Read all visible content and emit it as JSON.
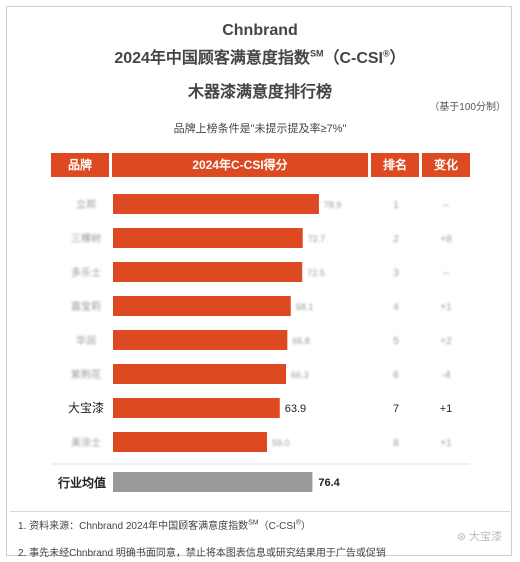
{
  "header": {
    "title_en": "Chnbrand",
    "title_cn_main": "2024年中国顾客满意度指数",
    "title_cn_sup": "SM",
    "title_cn_tail": "（C-CSI",
    "title_cn_reg": "®",
    "title_cn_end": "）",
    "subtitle": "木器漆满意度排行榜",
    "basis": "（基于100分制）",
    "condition": "品牌上榜条件是\"未提示提及率≥7%\""
  },
  "columns": {
    "brand": "品牌",
    "score": "2024年C-CSI得分",
    "rank": "排名",
    "change": "变化"
  },
  "chart_data": {
    "type": "bar",
    "orientation": "horizontal",
    "categories": [
      "立邦",
      "三棵树",
      "多乐士",
      "嘉宝莉",
      "华润",
      "紫荆花",
      "大宝漆",
      "美涂士"
    ],
    "values": [
      78.9,
      72.7,
      72.5,
      68.1,
      66.8,
      66.3,
      63.9,
      59.0
    ],
    "ranks": [
      "1",
      "2",
      "3",
      "4",
      "5",
      "6",
      "7",
      "8"
    ],
    "changes": [
      "–",
      "+8",
      "–",
      "+1",
      "+2",
      "-4",
      "+1",
      "+1"
    ],
    "blurred": [
      true,
      true,
      true,
      true,
      true,
      true,
      false,
      true
    ],
    "average_label": "行业均值",
    "average_value": 76.4,
    "bar_color": "#dd4a21",
    "average_color": "#999999",
    "xlim": [
      0,
      100
    ]
  },
  "footer": {
    "note1_pre": "1. 资料来源：Chnbrand 2024年中国顾客满意度指数",
    "note1_sup": "SM",
    "note1_tail": "（C-CSI",
    "note1_reg": "®",
    "note1_end": "）",
    "note2": "2. 事先未经Chnbrand 明确书面同意，禁止将本图表信息或研究结果用于广告或促销",
    "watermark": "大宝漆"
  }
}
